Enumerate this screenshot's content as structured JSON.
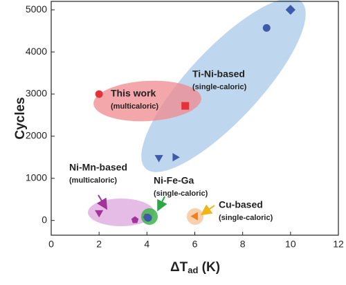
{
  "chart_data": {
    "type": "scatter",
    "xlabel": [
      "ΔT",
      "ad",
      " (K)"
    ],
    "ylabel": "Cycles",
    "xlim": [
      0,
      12
    ],
    "ylim": [
      -350,
      5200
    ],
    "xticks": [
      0,
      2,
      4,
      6,
      8,
      10,
      12
    ],
    "yticks": [
      0,
      1000,
      2000,
      3000,
      4000,
      5000
    ],
    "series": [
      {
        "name": "Ti-Ni-based",
        "note": "(single-caloric)",
        "color": "#3d5ba9",
        "region_color": "#a9c8ea",
        "x": [
          10,
          9,
          4.5,
          5.2
        ],
        "values": [
          5000,
          4570,
          1480,
          1500
        ],
        "markers": [
          "diamond",
          "circle",
          "triangle-down",
          "triangle-right"
        ]
      },
      {
        "name": "This work",
        "note": "(multicaloric)",
        "color": "#e3323a",
        "region_color": "#f08a8f",
        "x": [
          2,
          5.6
        ],
        "values": [
          3000,
          2720
        ],
        "markers": [
          "circle",
          "square"
        ]
      },
      {
        "name": "Ni-Mn-based",
        "note": "(multicaloric)",
        "color": "#a3329b",
        "region_color": "#dba6dc",
        "x": [
          2,
          3.5
        ],
        "values": [
          170,
          10
        ],
        "markers": [
          "triangle-down",
          "pentagon"
        ]
      },
      {
        "name": "Ni-Fe-Ga",
        "note": "(single-caloric)",
        "color": "#3d5ba9",
        "region_color": "#3cb54a",
        "x": [
          4.0,
          4.05
        ],
        "values": [
          80,
          60
        ],
        "markers": [
          "hexagon",
          "circle"
        ]
      },
      {
        "name": "Cu-based",
        "note": "(single-caloric)",
        "color": "#f07f22",
        "region_color": "#f6c08f",
        "x": [
          6.0
        ],
        "values": [
          100
        ],
        "markers": [
          "triangle-left"
        ]
      }
    ]
  }
}
